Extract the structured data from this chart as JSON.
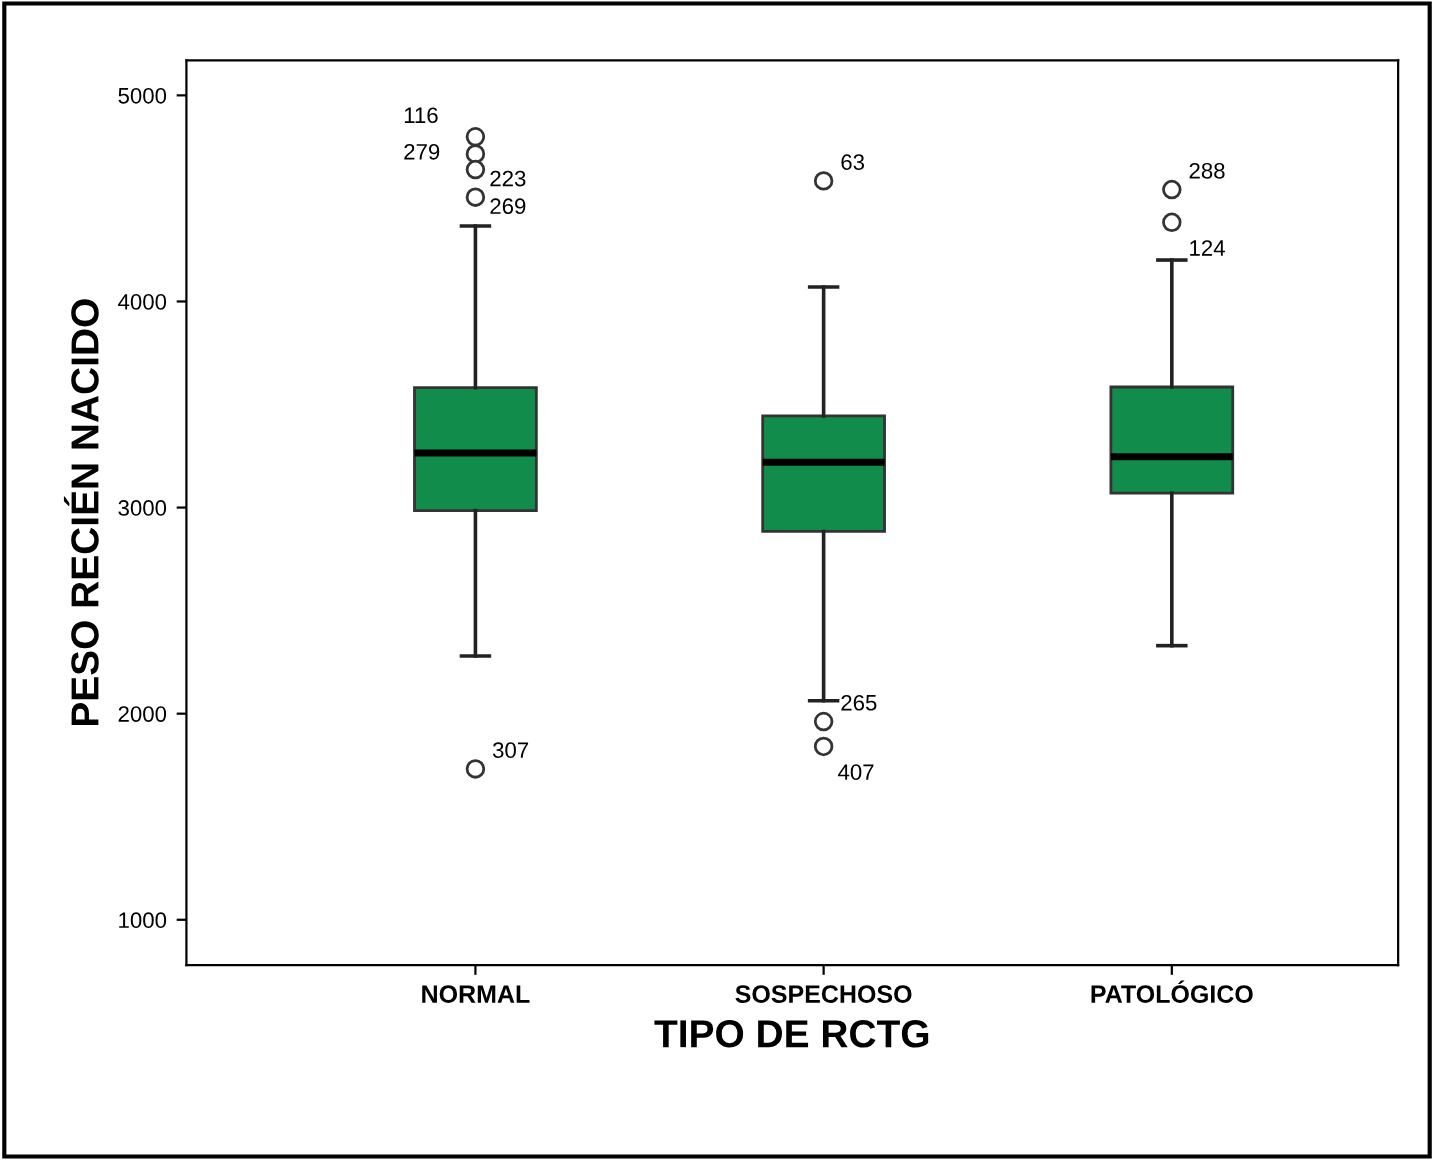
{
  "chart_data": {
    "type": "box",
    "xlabel": "TIPO DE RCTG",
    "ylabel": "PESO RECIÉN NACIDO",
    "categories": [
      "NORMAL",
      "SOSPECHOSO",
      "PATOLÓGICO"
    ],
    "color": "#128c4a",
    "boxes": [
      {
        "low": 2280,
        "q1": 2985,
        "median": 3265,
        "q3": 3582,
        "high": 4366,
        "outliers": [
          4799,
          4716,
          4640,
          4506,
          1732
        ]
      },
      {
        "low": 2063,
        "q1": 2884,
        "median": 3220,
        "q3": 3445,
        "high": 4070,
        "outliers": [
          4585,
          1962,
          1841
        ]
      },
      {
        "low": 2330,
        "q1": 3070,
        "median": 3247,
        "q3": 3585,
        "high": 4201,
        "outliers": [
          4543,
          4384
        ]
      }
    ],
    "ylim": [
      780,
      5170
    ],
    "yticks": [
      1000,
      2000,
      3000,
      4000,
      5000
    ],
    "grid": false,
    "legend": false,
    "annotations": [
      "116",
      "279",
      "223",
      "269",
      "307",
      "63",
      "265",
      "407",
      "288",
      "124"
    ]
  }
}
